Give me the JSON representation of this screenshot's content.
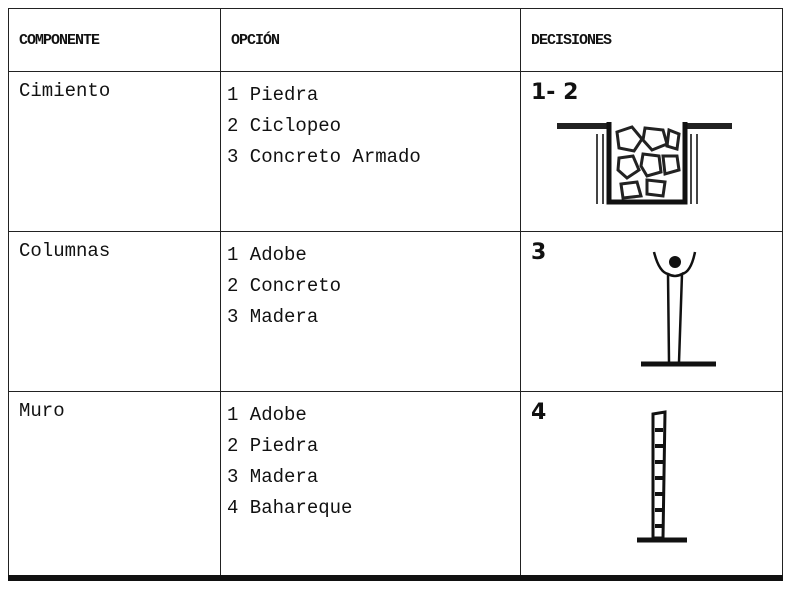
{
  "table": {
    "headers": [
      "COMPONENTE",
      "OPCIÓN",
      "DECISIONES"
    ],
    "rows": [
      {
        "component": "Cimiento",
        "options": [
          "1 Piedra",
          "2 Ciclopeo",
          "3 Concreto Armado"
        ],
        "decision": "1- 2"
      },
      {
        "component": "Columnas",
        "options": [
          "1 Adobe",
          "2 Concreto",
          "3 Madera"
        ],
        "decision": "3"
      },
      {
        "component": "Muro",
        "options": [
          "1 Adobe",
          "2 Piedra",
          "3 Madera",
          "4 Bahareque"
        ],
        "decision": "4"
      }
    ]
  }
}
